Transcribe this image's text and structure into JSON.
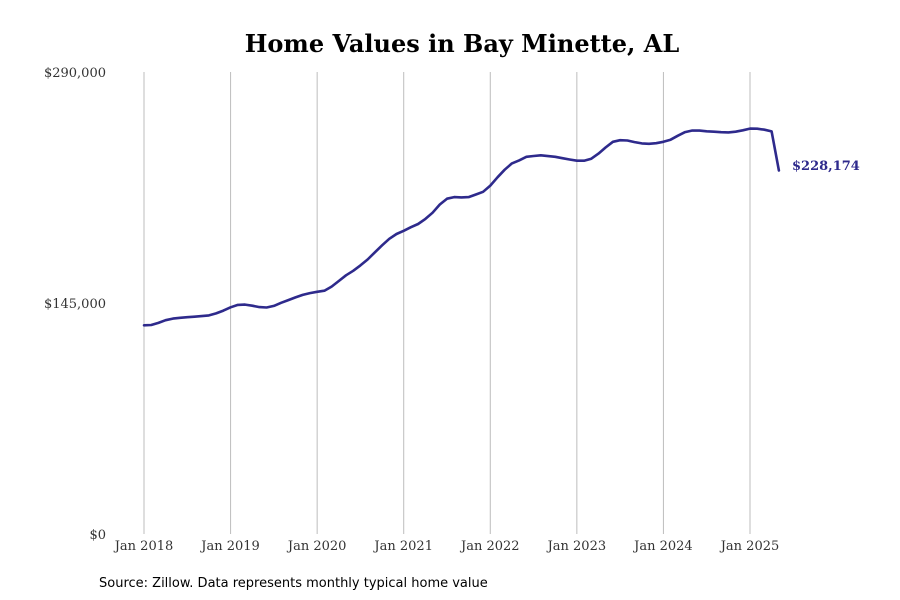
{
  "chart_data": {
    "type": "line",
    "title": "Home Values in Bay Minette, AL",
    "xlabel": "",
    "ylabel": "",
    "ylim": [
      0,
      290000
    ],
    "y_ticks": [
      {
        "value": 0,
        "label": "$0"
      },
      {
        "value": 145000,
        "label": "$145,000"
      },
      {
        "value": 290000,
        "label": "$290,000"
      }
    ],
    "x_ticks": [
      {
        "value": "2018-01",
        "label": "Jan 2018"
      },
      {
        "value": "2019-01",
        "label": "Jan 2019"
      },
      {
        "value": "2020-01",
        "label": "Jan 2020"
      },
      {
        "value": "2021-01",
        "label": "Jan 2021"
      },
      {
        "value": "2022-01",
        "label": "Jan 2022"
      },
      {
        "value": "2023-01",
        "label": "Jan 2023"
      },
      {
        "value": "2024-01",
        "label": "Jan 2024"
      },
      {
        "value": "2025-01",
        "label": "Jan 2025"
      }
    ],
    "grid": {
      "vertical": true,
      "horizontal": false
    },
    "series": [
      {
        "color": "#2e2a8c",
        "x": [
          "2018-01",
          "2018-02",
          "2018-03",
          "2018-04",
          "2018-05",
          "2018-06",
          "2018-07",
          "2018-08",
          "2018-09",
          "2018-10",
          "2018-11",
          "2018-12",
          "2019-01",
          "2019-02",
          "2019-03",
          "2019-04",
          "2019-05",
          "2019-06",
          "2019-07",
          "2019-08",
          "2019-09",
          "2019-10",
          "2019-11",
          "2019-12",
          "2020-01",
          "2020-02",
          "2020-03",
          "2020-04",
          "2020-05",
          "2020-06",
          "2020-07",
          "2020-08",
          "2020-09",
          "2020-10",
          "2020-11",
          "2020-12",
          "2021-01",
          "2021-02",
          "2021-03",
          "2021-04",
          "2021-05",
          "2021-06",
          "2021-07",
          "2021-08",
          "2021-09",
          "2021-10",
          "2021-11",
          "2021-12",
          "2022-01",
          "2022-02",
          "2022-03",
          "2022-04",
          "2022-05",
          "2022-06",
          "2022-07",
          "2022-08",
          "2022-09",
          "2022-10",
          "2022-11",
          "2022-12",
          "2023-01",
          "2023-02",
          "2023-03",
          "2023-04",
          "2023-05",
          "2023-06",
          "2023-07",
          "2023-08",
          "2023-09",
          "2023-10",
          "2023-11",
          "2023-12",
          "2024-01",
          "2024-02",
          "2024-03",
          "2024-04",
          "2024-05",
          "2024-06",
          "2024-07",
          "2024-08",
          "2024-09",
          "2024-10",
          "2024-11",
          "2024-12",
          "2025-01",
          "2025-02",
          "2025-03",
          "2025-04",
          "2025-05"
        ],
        "values": [
          131000,
          131200,
          132500,
          134200,
          135200,
          135700,
          136100,
          136400,
          136800,
          137200,
          138500,
          140200,
          142300,
          143800,
          144000,
          143300,
          142400,
          142200,
          143200,
          145100,
          146800,
          148500,
          150100,
          151200,
          152000,
          152700,
          155300,
          158800,
          162400,
          165200,
          168600,
          172300,
          176800,
          181200,
          185300,
          188300,
          190300,
          192600,
          194600,
          197800,
          201700,
          206800,
          210500,
          211500,
          211300,
          211500,
          213100,
          214800,
          218700,
          223900,
          228700,
          232600,
          234500,
          236800,
          237300,
          237700,
          237200,
          236800,
          235900,
          235100,
          234300,
          234300,
          235600,
          238800,
          242700,
          246200,
          247200,
          247000,
          246000,
          245200,
          244900,
          245300,
          246200,
          247500,
          250000,
          252300,
          253300,
          253200,
          252800,
          252500,
          252200,
          252100,
          252500,
          253400,
          254500,
          254400,
          253800,
          252700,
          228174
        ]
      }
    ],
    "end_label": "$228,174"
  },
  "source": "Source: Zillow. Data represents monthly typical home value"
}
